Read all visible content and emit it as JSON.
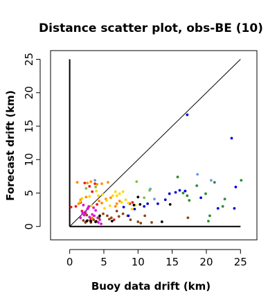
{
  "chart_data": {
    "type": "scatter",
    "title": "Distance scatter plot, obs-BE (10)",
    "xlabel": "Buoy data drift (km)",
    "ylabel": "Forecast drift (km)",
    "xlim": [
      -2.8,
      27.4
    ],
    "ylim": [
      -2.0,
      26.3
    ],
    "xticks": [
      0,
      5,
      10,
      15,
      20,
      25
    ],
    "yticks": [
      0,
      5,
      10,
      15,
      20,
      25
    ],
    "grid": false,
    "legend": false,
    "reference_lines": [
      {
        "name": "diagonal",
        "x": [
          0,
          25
        ],
        "y": [
          0,
          25
        ]
      },
      {
        "name": "x-zero-line",
        "x": [
          0,
          0
        ],
        "y": [
          0,
          25
        ]
      },
      {
        "name": "y-zero-line",
        "x": [
          0,
          25
        ],
        "y": [
          0,
          0
        ]
      }
    ],
    "colors": {
      "red": "#e41a1c",
      "magenta": "#dd11dd",
      "orange": "#ff8c00",
      "gold": "#ffd700",
      "brown": "#8b4513",
      "black": "#000000",
      "green": "#2e8b2e",
      "blue": "#0000dd",
      "lightblue": "#6699dd",
      "lime": "#7cc242"
    },
    "series": [
      {
        "color": "red",
        "points": [
          [
            0.2,
            2.9
          ],
          [
            0.9,
            3.0
          ],
          [
            1.6,
            3.6
          ],
          [
            2.2,
            6.5
          ],
          [
            2.9,
            6.0
          ],
          [
            3.7,
            6.4
          ],
          [
            1.8,
            2.3
          ],
          [
            3.1,
            1.2
          ],
          [
            4.0,
            3.3
          ],
          [
            2.3,
            2.0
          ],
          [
            6.5,
            1.0
          ],
          [
            8.8,
            3.4
          ],
          [
            9.2,
            3.6
          ],
          [
            3.3,
            5.2
          ]
        ]
      },
      {
        "color": "magenta",
        "points": [
          [
            1.9,
            2.0
          ],
          [
            2.1,
            1.7
          ],
          [
            2.3,
            2.2
          ],
          [
            2.6,
            2.6
          ],
          [
            2.8,
            3.0
          ],
          [
            3.3,
            1.8
          ],
          [
            3.5,
            2.8
          ],
          [
            3.8,
            2.4
          ],
          [
            2.9,
            1.4
          ],
          [
            3.0,
            0.9
          ],
          [
            4.2,
            0.6
          ],
          [
            4.4,
            1.0
          ],
          [
            4.6,
            0.4
          ],
          [
            1.6,
            1.3
          ],
          [
            2.0,
            3.2
          ],
          [
            3.6,
            1.6
          ],
          [
            4.1,
            1.3
          ],
          [
            2.7,
            2.8
          ]
        ]
      },
      {
        "color": "orange",
        "points": [
          [
            1.1,
            6.6
          ],
          [
            2.6,
            6.5
          ],
          [
            3.1,
            6.7
          ],
          [
            4.0,
            6.3
          ],
          [
            4.7,
            6.4
          ],
          [
            5.6,
            6.6
          ],
          [
            1.3,
            3.4
          ],
          [
            1.6,
            4.0
          ],
          [
            2.4,
            4.4
          ],
          [
            4.3,
            3.8
          ],
          [
            5.3,
            4.1
          ],
          [
            6.0,
            4.3
          ],
          [
            6.9,
            3.4
          ],
          [
            7.3,
            3.8
          ],
          [
            6.7,
            3.0
          ],
          [
            3.3,
            1.3
          ],
          [
            4.7,
            3.5
          ]
        ]
      },
      {
        "color": "gold",
        "points": [
          [
            1.5,
            3.7
          ],
          [
            1.8,
            4.2
          ],
          [
            2.9,
            4.5
          ],
          [
            3.2,
            3.1
          ],
          [
            3.9,
            5.3
          ],
          [
            4.2,
            4.6
          ],
          [
            4.8,
            4.8
          ],
          [
            5.4,
            3.9
          ],
          [
            5.9,
            3.1
          ],
          [
            6.3,
            4.6
          ],
          [
            6.7,
            5.2
          ],
          [
            6.9,
            4.6
          ],
          [
            7.3,
            4.9
          ],
          [
            7.8,
            5.2
          ],
          [
            8.2,
            4.0
          ],
          [
            8.6,
            3.5
          ],
          [
            9.1,
            2.6
          ],
          [
            9.6,
            3.2
          ],
          [
            5.1,
            2.7
          ],
          [
            7.6,
            3.6
          ]
        ]
      },
      {
        "color": "brown",
        "points": [
          [
            2.0,
            0.9
          ],
          [
            2.3,
            0.6
          ],
          [
            2.6,
            0.9
          ],
          [
            3.1,
            0.6
          ],
          [
            3.5,
            1.0
          ],
          [
            4.3,
            1.3
          ],
          [
            4.9,
            1.9
          ],
          [
            5.5,
            1.6
          ],
          [
            6.1,
            1.3
          ],
          [
            6.9,
            2.3
          ],
          [
            7.8,
            1.9
          ],
          [
            8.5,
            1.6
          ],
          [
            8.9,
            1.0
          ],
          [
            10.0,
            0.7
          ],
          [
            10.4,
            0.5
          ],
          [
            11.0,
            1.6
          ],
          [
            12.0,
            0.6
          ],
          [
            17.3,
            1.3
          ],
          [
            2.5,
            1.7
          ],
          [
            3.9,
            0.8
          ],
          [
            5.8,
            1.1
          ],
          [
            7.2,
            1.5
          ]
        ]
      },
      {
        "color": "black",
        "points": [
          [
            2.5,
            0.8
          ],
          [
            3.1,
            0.8
          ],
          [
            3.8,
            0.7
          ],
          [
            4.4,
            1.6
          ],
          [
            9.4,
            3.2
          ],
          [
            10.0,
            4.4
          ],
          [
            10.3,
            3.3
          ],
          [
            13.5,
            0.7
          ],
          [
            14.7,
            3.3
          ],
          [
            6.2,
            0.8
          ]
        ]
      },
      {
        "color": "green",
        "points": [
          [
            15.8,
            7.4
          ],
          [
            17.2,
            4.6
          ],
          [
            17.5,
            3.9
          ],
          [
            18.6,
            6.1
          ],
          [
            19.9,
            4.9
          ],
          [
            20.3,
            0.8
          ],
          [
            20.5,
            1.6
          ],
          [
            22.4,
            3.0
          ],
          [
            22.7,
            4.1
          ],
          [
            25.1,
            6.9
          ],
          [
            16.6,
            5.0
          ],
          [
            21.2,
            6.6
          ]
        ]
      },
      {
        "color": "blue",
        "points": [
          [
            7.9,
            2.9
          ],
          [
            8.6,
            1.6
          ],
          [
            9.5,
            2.6
          ],
          [
            10.9,
            3.0
          ],
          [
            11.4,
            3.4
          ],
          [
            12.9,
            3.4
          ],
          [
            14.0,
            4.0
          ],
          [
            14.6,
            4.9
          ],
          [
            15.5,
            5.1
          ],
          [
            16.1,
            5.4
          ],
          [
            16.9,
            5.3
          ],
          [
            17.2,
            16.7
          ],
          [
            19.2,
            4.3
          ],
          [
            21.7,
            2.7
          ],
          [
            23.7,
            13.2
          ],
          [
            24.3,
            5.9
          ],
          [
            24.1,
            2.7
          ]
        ]
      },
      {
        "color": "lightblue",
        "points": [
          [
            3.7,
            6.9
          ],
          [
            11.8,
            5.6
          ],
          [
            18.7,
            7.8
          ],
          [
            20.7,
            6.9
          ],
          [
            12.4,
            4.1
          ]
        ]
      },
      {
        "color": "lime",
        "points": [
          [
            2.4,
            5.7
          ],
          [
            3.8,
            5.9
          ],
          [
            10.9,
            4.3
          ],
          [
            11.7,
            5.4
          ],
          [
            9.8,
            6.7
          ]
        ]
      }
    ]
  }
}
